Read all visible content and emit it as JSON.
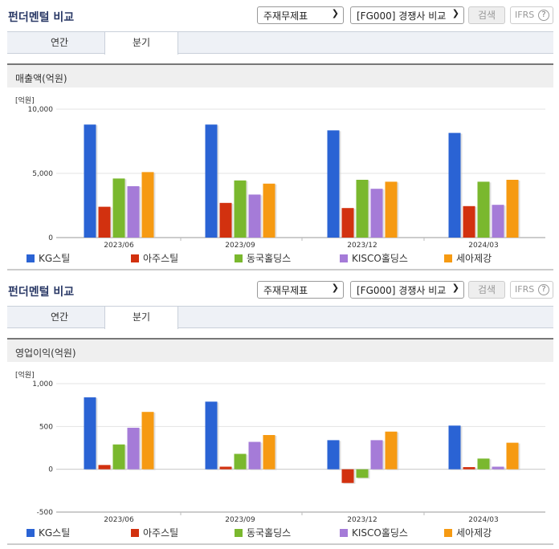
{
  "sections": [
    {
      "title": "펀더멘털 비교",
      "select_report": "주재무제표",
      "select_compare": "[FG000] 경쟁사 비교",
      "search_label": "검색",
      "ifrs_label": "IFRS",
      "tab_annual": "연간",
      "tab_quarter": "분기",
      "metric_label": "매출액(억원)",
      "unit_label": "[억원]"
    },
    {
      "title": "펀더멘털 비교",
      "select_report": "주재무제표",
      "select_compare": "[FG000] 경쟁사 비교",
      "search_label": "검색",
      "ifrs_label": "IFRS",
      "tab_annual": "연간",
      "tab_quarter": "분기",
      "metric_label": "영업이익(억원)",
      "unit_label": "[억원]"
    }
  ],
  "colors": {
    "KG스틸": "#2a63d4",
    "아주스틸": "#d2310f",
    "동국홀딩스": "#7ab82e",
    "KISCO홀딩스": "#a57bd8",
    "세아제강": "#f69a12"
  },
  "chart_data": [
    {
      "type": "bar",
      "title": "매출액(억원)",
      "ylabel": "[억원]",
      "categories": [
        "2023/06",
        "2023/09",
        "2023/12",
        "2024/03"
      ],
      "ylim": [
        0,
        10000
      ],
      "yticks": [
        "10,000",
        "5,000",
        "0"
      ],
      "ytick_values": [
        10000,
        5000,
        0
      ],
      "series": [
        {
          "name": "KG스틸",
          "values": [
            8800,
            8800,
            8350,
            8150
          ]
        },
        {
          "name": "아주스틸",
          "values": [
            2400,
            2700,
            2300,
            2450
          ]
        },
        {
          "name": "동국홀딩스",
          "values": [
            4600,
            4450,
            4500,
            4350
          ]
        },
        {
          "name": "KISCO홀딩스",
          "values": [
            4000,
            3350,
            3800,
            2550
          ]
        },
        {
          "name": "세아제강",
          "values": [
            5100,
            4200,
            4350,
            4500
          ]
        }
      ],
      "legend": "bottom"
    },
    {
      "type": "bar",
      "title": "영업이익(억원)",
      "ylabel": "[억원]",
      "categories": [
        "2023/06",
        "2023/09",
        "2023/12",
        "2024/03"
      ],
      "ylim": [
        -500,
        1000
      ],
      "yticks": [
        "1,000",
        "500",
        "0",
        "-500"
      ],
      "ytick_values": [
        1000,
        500,
        0,
        -500
      ],
      "series": [
        {
          "name": "KG스틸",
          "values": [
            840,
            790,
            340,
            510
          ]
        },
        {
          "name": "아주스틸",
          "values": [
            50,
            30,
            -160,
            25
          ]
        },
        {
          "name": "동국홀딩스",
          "values": [
            290,
            180,
            -100,
            125
          ]
        },
        {
          "name": "KISCO홀딩스",
          "values": [
            485,
            320,
            340,
            30
          ]
        },
        {
          "name": "세아제강",
          "values": [
            670,
            400,
            440,
            310
          ]
        }
      ],
      "legend": "bottom"
    }
  ]
}
